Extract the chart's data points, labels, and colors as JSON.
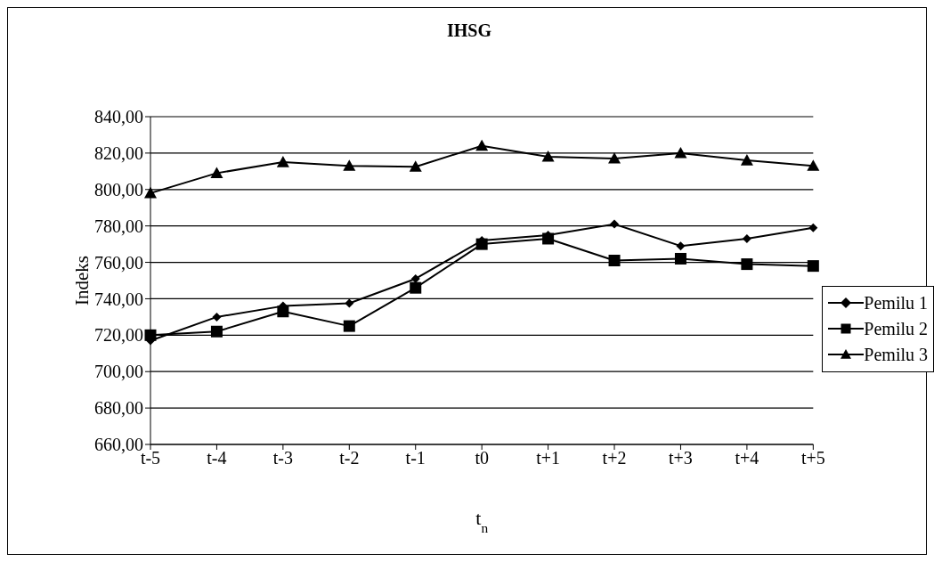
{
  "chart_data": {
    "type": "line",
    "title": "IHSG",
    "xlabel": "t$_{n}$",
    "ylabel": "Indeks",
    "categories": [
      "t-5",
      "t-4",
      "t-3",
      "t-2",
      "t-1",
      "t0",
      "t+1",
      "t+2",
      "t+3",
      "t+4",
      "t+5"
    ],
    "series": [
      {
        "name": "Pemilu 1",
        "color": "#000000",
        "marker": "diamond",
        "values": [
          717,
          730,
          736,
          737.5,
          751,
          772,
          775,
          781,
          769,
          773,
          779
        ]
      },
      {
        "name": "Pemilu 2",
        "color": "#000000",
        "marker": "square",
        "values": [
          720,
          722,
          733,
          725,
          746,
          770,
          773,
          761,
          762,
          759,
          758
        ]
      },
      {
        "name": "Pemilu 3",
        "color": "#000000",
        "marker": "triangle",
        "values": [
          798,
          809,
          815,
          813,
          812.5,
          824,
          818,
          817,
          820,
          816,
          813
        ]
      }
    ],
    "ylim": [
      660,
      840
    ],
    "yticks": [
      {
        "value": 660,
        "label": "660,00"
      },
      {
        "value": 680,
        "label": "680,00"
      },
      {
        "value": 700,
        "label": "700,00"
      },
      {
        "value": 720,
        "label": "720,00"
      },
      {
        "value": 740,
        "label": "740,00"
      },
      {
        "value": 760,
        "label": "760,00"
      },
      {
        "value": 780,
        "label": "780,00"
      },
      {
        "value": 800,
        "label": "800,00"
      },
      {
        "value": 820,
        "label": "820,00"
      },
      {
        "value": 840,
        "label": "840,00"
      }
    ],
    "grid": "y",
    "legend": "right",
    "line_style": "solid"
  }
}
